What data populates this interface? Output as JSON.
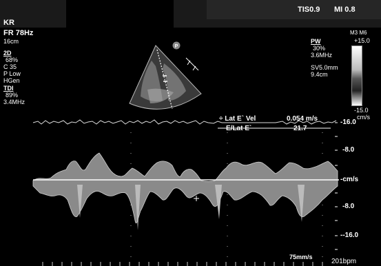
{
  "header": {
    "tis": "TIS0.9",
    "mi": "MI 0.8",
    "initials": "KR"
  },
  "left_params": {
    "fr": "FR 78Hz",
    "depth": "16cm",
    "mode_2d_title": "2D",
    "mode_2d_gain": "68%",
    "mode_2d_c": "C 35",
    "mode_2d_p": "P Low",
    "mode_2d_h": "HGen",
    "tdi_title": "TDI",
    "tdi_gain": "89%",
    "tdi_freq": "3.4MHz"
  },
  "right_params": {
    "pw_title": "PW",
    "pw_gain": "30%",
    "pw_freq": "3.6MHz",
    "sv": "SV5.0mm",
    "depth": "9.4cm",
    "m_label": "M3 M6",
    "scale_top": "+15.0",
    "scale_bottom": "-15.0",
    "scale_unit": "cm/s"
  },
  "thumbnail": {
    "marker": "P"
  },
  "measurements": {
    "lat_e_vel_label": "÷ Lat E` Vel",
    "lat_e_vel_value": "0.054 m/s",
    "e_lat_e_label": "E/Lat E`",
    "e_lat_e_value": "21.7"
  },
  "doppler_scale": {
    "top": "-16.0",
    "p8": "-8.0",
    "baseline": "-cm/s",
    "m8": "-8.0",
    "bottom": "--16.0"
  },
  "footer": {
    "sweep": "75mm/s",
    "hr": "201bpm"
  },
  "colors": {
    "background": "#000000",
    "text": "#ffffff",
    "baseline": "#ffffff"
  }
}
